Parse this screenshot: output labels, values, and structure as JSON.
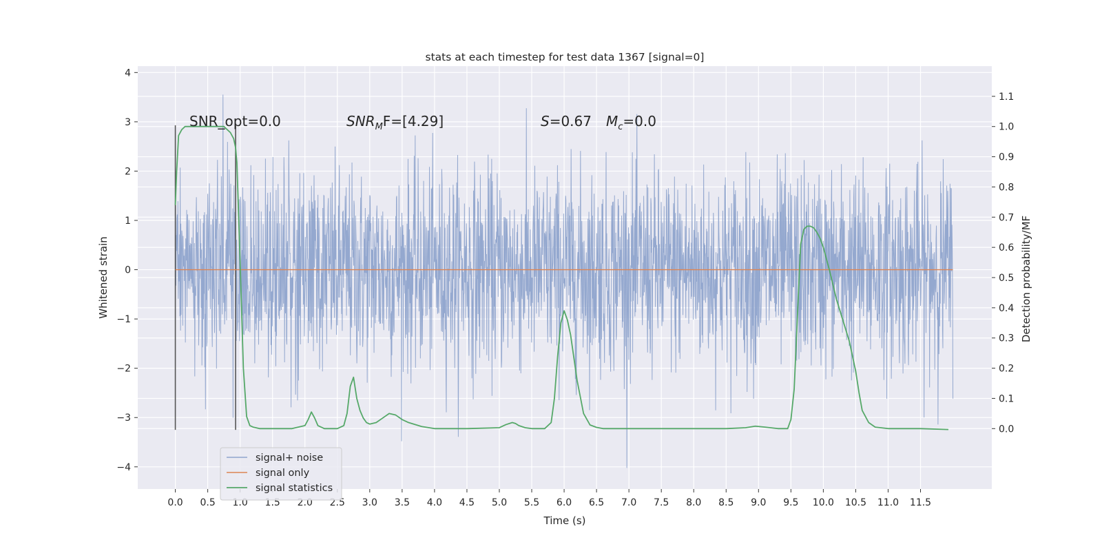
{
  "chart_data": {
    "type": "line",
    "title": "stats at each timestep for test data 1367 [signal=0]",
    "xlabel": "Time (s)",
    "ylabel_left": "Whitened strain",
    "ylabel_right": "Detection probability/MF",
    "xlim": [
      -0.58,
      12.6
    ],
    "ylim_left": [
      -4.45,
      4.13
    ],
    "ylim_right": [
      -0.2,
      1.2
    ],
    "x_ticks": [
      "0.0",
      "0.5",
      "1.0",
      "1.5",
      "2.0",
      "2.5",
      "3.0",
      "3.5",
      "4.0",
      "4.5",
      "5.0",
      "5.5",
      "6.0",
      "6.5",
      "7.0",
      "7.5",
      "8.0",
      "8.5",
      "9.0",
      "9.5",
      "10.0",
      "10.5",
      "11.0",
      "11.5"
    ],
    "y_ticks_left": [
      "−4",
      "−3",
      "−2",
      "−1",
      "0",
      "1",
      "2",
      "3",
      "4"
    ],
    "y_ticks_right": [
      "0.0",
      "0.1",
      "0.2",
      "0.3",
      "0.4",
      "0.5",
      "0.6",
      "0.7",
      "0.8",
      "0.9",
      "1.0",
      "1.1"
    ],
    "grid": true,
    "legend_location": "lower-left",
    "annotations": {
      "snr_opt": "SNR_opt=0.0",
      "snr_mf_main": "SNR",
      "snr_mf_sub": "M",
      "snr_mf_rest": "F=[4.29]",
      "s_main": "S",
      "s_rest": "=0.67",
      "mc_main": "M",
      "mc_sub": "c",
      "mc_rest": "=0.0"
    },
    "vertical_markers": [
      0.0,
      0.93
    ],
    "series": [
      {
        "name": "signal+ noise",
        "color": "#8FA4CC",
        "axis": "left",
        "description_stats": {
          "x_range": [
            0.0,
            12.0
          ],
          "n_samples": 2400,
          "sigma": 1.0
        }
      },
      {
        "name": "signal only",
        "color": "#DD8452",
        "axis": "left",
        "x": [
          0.0,
          12.0
        ],
        "y": [
          0.0,
          0.0
        ]
      },
      {
        "name": "signal statistics",
        "color": "#55A868",
        "axis": "right",
        "x": [
          0.0,
          0.02,
          0.05,
          0.1,
          0.15,
          0.2,
          0.3,
          0.4,
          0.5,
          0.6,
          0.7,
          0.75,
          0.8,
          0.85,
          0.9,
          0.93,
          0.95,
          1.0,
          1.05,
          1.1,
          1.15,
          1.2,
          1.3,
          1.5,
          1.8,
          2.0,
          2.05,
          2.1,
          2.15,
          2.2,
          2.3,
          2.4,
          2.5,
          2.6,
          2.65,
          2.7,
          2.75,
          2.8,
          2.85,
          2.9,
          2.95,
          3.0,
          3.1,
          3.2,
          3.3,
          3.4,
          3.5,
          3.6,
          3.8,
          4.0,
          4.5,
          5.0,
          5.1,
          5.2,
          5.25,
          5.3,
          5.4,
          5.5,
          5.6,
          5.7,
          5.8,
          5.85,
          5.9,
          5.95,
          6.0,
          6.05,
          6.1,
          6.2,
          6.3,
          6.4,
          6.5,
          6.6,
          7.0,
          7.5,
          8.0,
          8.5,
          8.8,
          8.95,
          9.1,
          9.3,
          9.45,
          9.5,
          9.55,
          9.6,
          9.65,
          9.7,
          9.75,
          9.8,
          9.85,
          9.9,
          9.95,
          10.0,
          10.1,
          10.2,
          10.3,
          10.4,
          10.45,
          10.5,
          10.55,
          10.6,
          10.7,
          10.8,
          11.0,
          11.5,
          11.93
        ],
        "y": [
          0.74,
          0.85,
          0.97,
          0.99,
          1.0,
          1.0,
          1.0,
          1.0,
          1.0,
          1.0,
          1.0,
          1.0,
          0.99,
          0.98,
          0.96,
          0.93,
          0.88,
          0.55,
          0.2,
          0.04,
          0.01,
          0.005,
          0.0,
          0.0,
          0.0,
          0.01,
          0.03,
          0.055,
          0.035,
          0.01,
          0.0,
          0.0,
          0.0,
          0.01,
          0.05,
          0.14,
          0.17,
          0.1,
          0.06,
          0.035,
          0.02,
          0.015,
          0.02,
          0.035,
          0.05,
          0.045,
          0.03,
          0.02,
          0.007,
          0.0,
          0.0,
          0.003,
          0.013,
          0.02,
          0.017,
          0.01,
          0.003,
          0.0,
          0.0,
          0.0,
          0.02,
          0.1,
          0.24,
          0.35,
          0.39,
          0.36,
          0.31,
          0.16,
          0.05,
          0.012,
          0.004,
          0.0,
          0.0,
          0.0,
          0.0,
          0.0,
          0.003,
          0.008,
          0.005,
          0.0,
          0.0,
          0.03,
          0.13,
          0.37,
          0.61,
          0.66,
          0.67,
          0.67,
          0.665,
          0.65,
          0.63,
          0.6,
          0.52,
          0.43,
          0.36,
          0.29,
          0.24,
          0.19,
          0.12,
          0.06,
          0.02,
          0.005,
          0.0,
          0.0,
          -0.003
        ]
      }
    ]
  }
}
